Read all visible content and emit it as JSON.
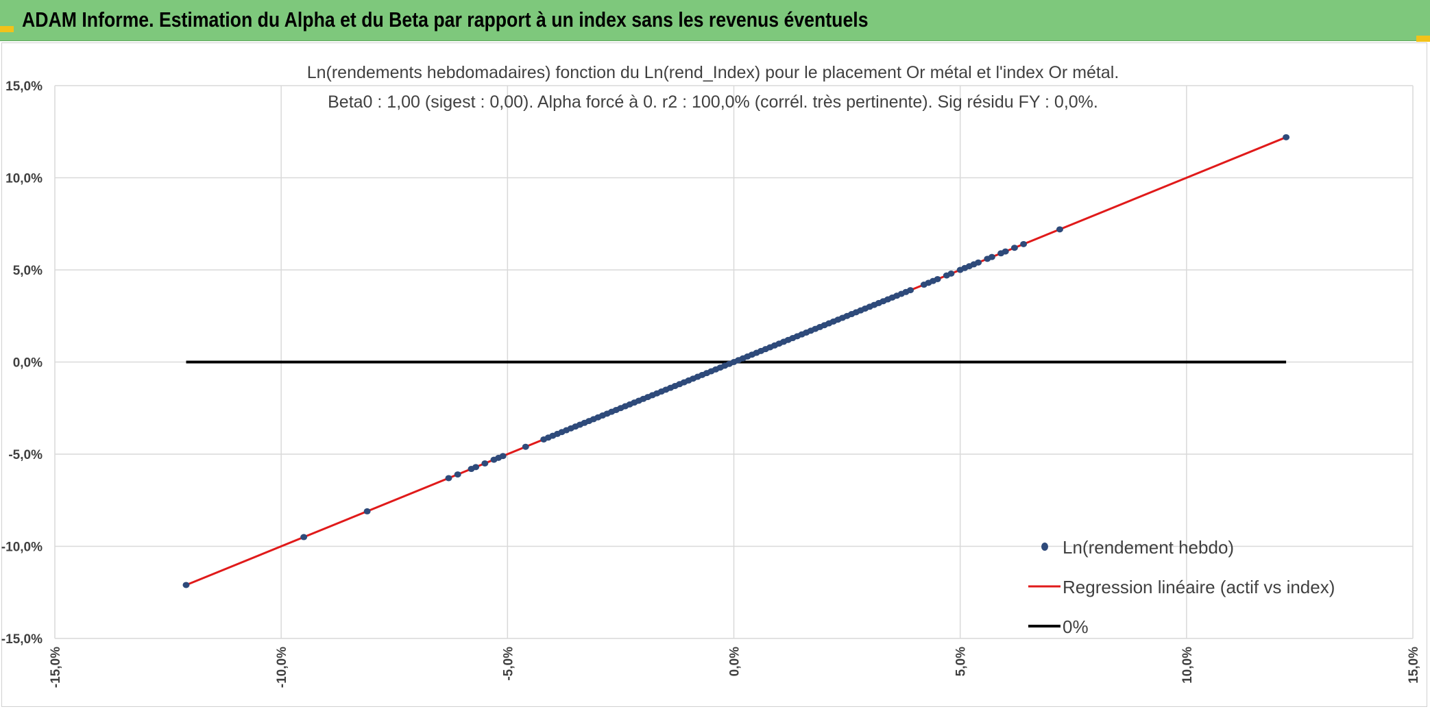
{
  "header": {
    "title": "ADAM Informe. Estimation du Alpha et du Beta par rapport à un index sans les revenus éventuels"
  },
  "colors": {
    "header_bg": "#7ec87c",
    "corner_marker": "#f2c21a",
    "points": "#2e4a7a",
    "regression": "#e01a1a",
    "zero_line": "#000000",
    "grid": "#d9d9d9",
    "text": "#404040"
  },
  "chart_data": {
    "type": "scatter",
    "title_line1": "Ln(rendements hebdomadaires) fonction du Ln(rend_Index) pour le placement Or métal et l'index Or métal.",
    "title_line2": "Beta0 : 1,00 (sigest : 0,00). Alpha forcé à 0. r2 : 100,0% (corrél. très pertinente). Sig résidu FY : 0,0%.",
    "xlim": [
      -0.15,
      0.15
    ],
    "ylim": [
      -0.15,
      0.15
    ],
    "x_ticks": [
      -0.15,
      -0.1,
      -0.05,
      0.0,
      0.05,
      0.1,
      0.15
    ],
    "y_ticks": [
      -0.15,
      -0.1,
      -0.05,
      0.0,
      0.05,
      0.1,
      0.15
    ],
    "x_tick_labels": [
      "-15,0%",
      "-10,0%",
      "-5,0%",
      "0,0%",
      "5,0%",
      "10,0%",
      "15,0%"
    ],
    "y_tick_labels": [
      "-15,0%",
      "-10,0%",
      "-5,0%",
      "0,0%",
      "5,0%",
      "10,0%",
      "15,0%"
    ],
    "grid": true,
    "legend_position": "bottom-right",
    "series": [
      {
        "name": "Ln(rendement hebdo)",
        "kind": "scatter",
        "x": [
          -0.121,
          -0.095,
          -0.081,
          -0.063,
          -0.061,
          -0.058,
          -0.057,
          -0.055,
          -0.053,
          -0.052,
          -0.051,
          -0.046,
          -0.042,
          -0.041,
          -0.04,
          -0.039,
          -0.038,
          -0.037,
          -0.036,
          -0.035,
          -0.034,
          -0.033,
          -0.032,
          -0.031,
          -0.03,
          -0.029,
          -0.028,
          -0.027,
          -0.026,
          -0.025,
          -0.024,
          -0.023,
          -0.022,
          -0.021,
          -0.02,
          -0.019,
          -0.018,
          -0.017,
          -0.016,
          -0.015,
          -0.014,
          -0.013,
          -0.012,
          -0.011,
          -0.01,
          -0.009,
          -0.008,
          -0.007,
          -0.006,
          -0.005,
          -0.004,
          -0.003,
          -0.002,
          -0.001,
          0.0,
          0.001,
          0.002,
          0.003,
          0.004,
          0.005,
          0.006,
          0.007,
          0.008,
          0.009,
          0.01,
          0.011,
          0.012,
          0.013,
          0.014,
          0.015,
          0.016,
          0.017,
          0.018,
          0.019,
          0.02,
          0.021,
          0.022,
          0.023,
          0.024,
          0.025,
          0.026,
          0.027,
          0.028,
          0.029,
          0.03,
          0.031,
          0.032,
          0.033,
          0.034,
          0.035,
          0.036,
          0.037,
          0.038,
          0.039,
          0.042,
          0.043,
          0.044,
          0.045,
          0.047,
          0.048,
          0.05,
          0.051,
          0.052,
          0.053,
          0.054,
          0.056,
          0.057,
          0.059,
          0.06,
          0.062,
          0.064,
          0.072,
          0.122
        ],
        "y": [
          -0.121,
          -0.095,
          -0.081,
          -0.063,
          -0.061,
          -0.058,
          -0.057,
          -0.055,
          -0.053,
          -0.052,
          -0.051,
          -0.046,
          -0.042,
          -0.041,
          -0.04,
          -0.039,
          -0.038,
          -0.037,
          -0.036,
          -0.035,
          -0.034,
          -0.033,
          -0.032,
          -0.031,
          -0.03,
          -0.029,
          -0.028,
          -0.027,
          -0.026,
          -0.025,
          -0.024,
          -0.023,
          -0.022,
          -0.021,
          -0.02,
          -0.019,
          -0.018,
          -0.017,
          -0.016,
          -0.015,
          -0.014,
          -0.013,
          -0.012,
          -0.011,
          -0.01,
          -0.009,
          -0.008,
          -0.007,
          -0.006,
          -0.005,
          -0.004,
          -0.003,
          -0.002,
          -0.001,
          0.0,
          0.001,
          0.002,
          0.003,
          0.004,
          0.005,
          0.006,
          0.007,
          0.008,
          0.009,
          0.01,
          0.011,
          0.012,
          0.013,
          0.014,
          0.015,
          0.016,
          0.017,
          0.018,
          0.019,
          0.02,
          0.021,
          0.022,
          0.023,
          0.024,
          0.025,
          0.026,
          0.027,
          0.028,
          0.029,
          0.03,
          0.031,
          0.032,
          0.033,
          0.034,
          0.035,
          0.036,
          0.037,
          0.038,
          0.039,
          0.042,
          0.043,
          0.044,
          0.045,
          0.047,
          0.048,
          0.05,
          0.051,
          0.052,
          0.053,
          0.054,
          0.056,
          0.057,
          0.059,
          0.06,
          0.062,
          0.064,
          0.072,
          0.122
        ],
        "color": "#2e4a7a"
      },
      {
        "name": "Regression linéaire (actif vs index)",
        "kind": "line",
        "x": [
          -0.121,
          0.122
        ],
        "y": [
          -0.121,
          0.122
        ],
        "color": "#e01a1a"
      },
      {
        "name": "0%",
        "kind": "line",
        "x": [
          -0.121,
          0.122
        ],
        "y": [
          0.0,
          0.0
        ],
        "color": "#000000"
      }
    ]
  }
}
